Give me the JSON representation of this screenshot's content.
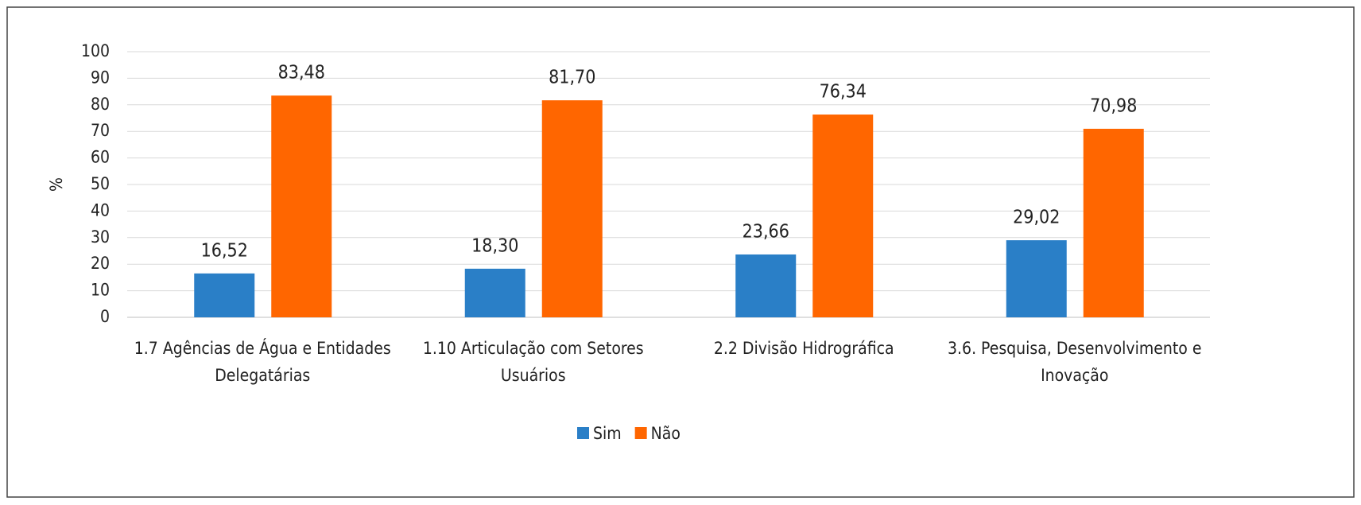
{
  "chart_data": {
    "type": "bar",
    "categories": [
      "1.7 Agências de Água e Entidades Delegatárias",
      "1.10 Articulação com Setores Usuários",
      "2.2 Divisão Hidrográfica",
      "3.6. Pesquisa, Desenvolvimento e Inovação"
    ],
    "series": [
      {
        "name": "Sim",
        "color": "#2a7fc7",
        "values": [
          16.52,
          18.3,
          23.66,
          29.02
        ],
        "value_labels": [
          "16,52",
          "18,30",
          "23,66",
          "29,02"
        ]
      },
      {
        "name": "Não",
        "color": "#ff6600",
        "values": [
          83.48,
          81.7,
          76.34,
          70.98
        ],
        "value_labels": [
          "83,48",
          "81,70",
          "76,34",
          "70,98"
        ]
      }
    ],
    "y_label": "%",
    "ylim": [
      0,
      100
    ],
    "yticks": [
      0,
      10,
      20,
      30,
      40,
      50,
      60,
      70,
      80,
      90,
      100
    ],
    "grid": true,
    "legend": "bottom"
  }
}
